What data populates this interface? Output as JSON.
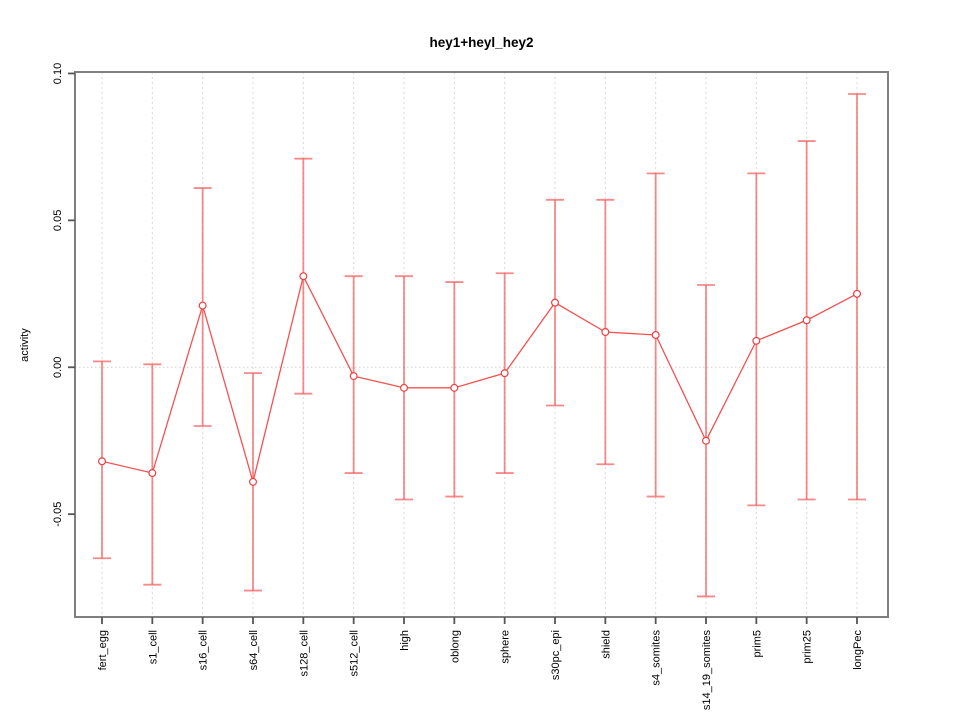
{
  "chart_data": {
    "type": "line",
    "title": "hey1+heyl_hey2",
    "xlabel": "",
    "ylabel": "activity",
    "categories": [
      "fert_egg",
      "s1_cell",
      "s16_cell",
      "s64_cell",
      "s128_cell",
      "s512_cell",
      "high",
      "oblong",
      "sphere",
      "s30pc_epi",
      "shield",
      "s4_somites",
      "s14_19_somites",
      "prim5",
      "prim25",
      "longPec"
    ],
    "series": [
      {
        "name": "hey1+heyl_hey2",
        "values": [
          -0.032,
          -0.036,
          0.021,
          -0.039,
          0.031,
          -0.003,
          -0.007,
          -0.007,
          -0.002,
          0.022,
          0.012,
          0.011,
          -0.025,
          0.009,
          0.016,
          0.025
        ],
        "err_high": [
          0.002,
          0.001,
          0.061,
          -0.002,
          0.071,
          0.031,
          0.031,
          0.029,
          0.032,
          0.057,
          0.057,
          0.066,
          0.028,
          0.066,
          0.077,
          0.093
        ],
        "err_low": [
          -0.065,
          -0.074,
          -0.02,
          -0.076,
          -0.009,
          -0.036,
          -0.045,
          -0.044,
          -0.036,
          -0.013,
          -0.033,
          -0.044,
          -0.078,
          -0.047,
          -0.045,
          -0.045
        ]
      }
    ],
    "yticks": [
      -0.05,
      0,
      0.05,
      0.1
    ],
    "ytick_labels": [
      "-0.05",
      "0.00",
      "0.05",
      "0.10"
    ],
    "ylim": [
      -0.085,
      0.1005
    ],
    "grid": "vertical dashed gridline at each category; horizontal dotted line at y=0",
    "legend": "none",
    "marker": "open-circle",
    "colors": {
      "line": "#f25252",
      "point_stroke": "#ee3f3f",
      "point_fill": "#ffffff",
      "error_bar": "#f56262",
      "grid": "#d8d8d8",
      "zero_line": "#cfcfcf",
      "box": "#7f7f7f",
      "tick": "#555555",
      "text": "#000000",
      "background": "#ffffff"
    }
  }
}
